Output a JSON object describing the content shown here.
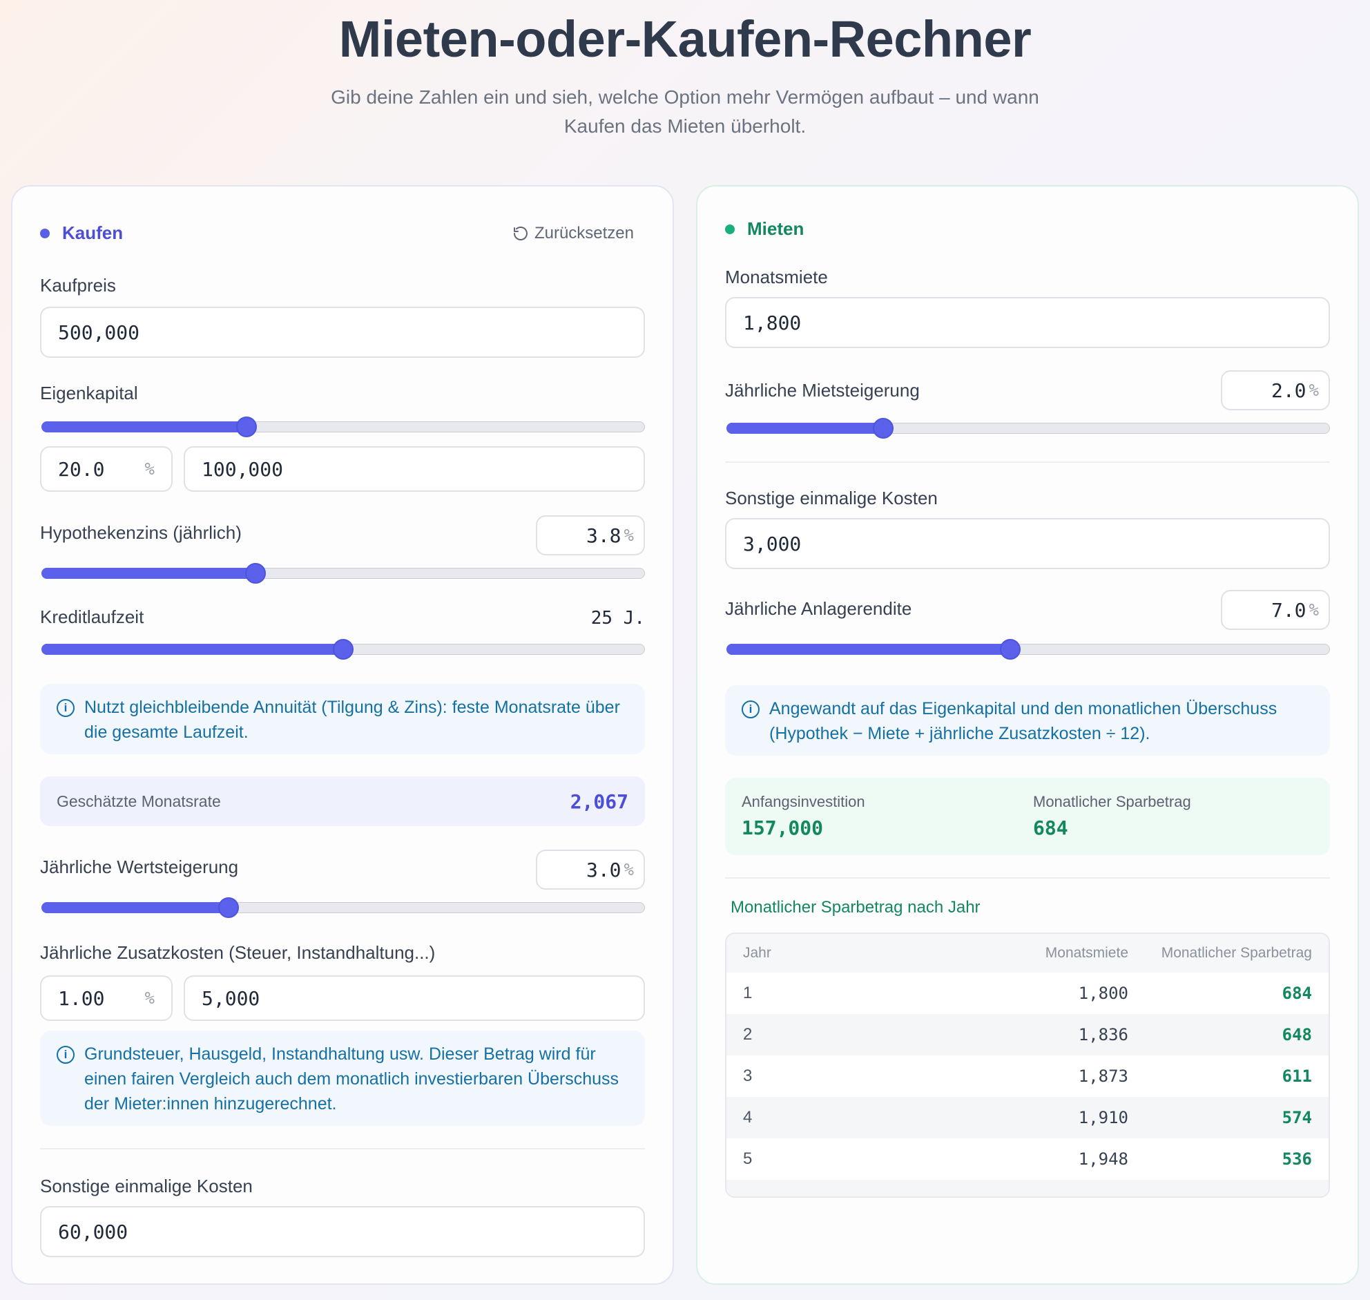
{
  "header": {
    "title": "Mieten-oder-Kaufen-Rechner",
    "subtitle": "Gib deine Zahlen ein und sieh, welche Option mehr Vermögen aufbaut – und wann Kaufen das Mieten überholt."
  },
  "colors": {
    "accent_buy": "#5b61ea",
    "accent_rent": "#19b07a",
    "info_text": "#1670a3"
  },
  "buy": {
    "section_title": "Kaufen",
    "reset_label": "Zurücksetzen",
    "purchase_price": {
      "label": "Kaufpreis",
      "value": "500,000"
    },
    "down_payment": {
      "label": "Eigenkapital",
      "percent": "20.0",
      "percent_symbol": "%",
      "amount": "100,000",
      "slider_level": 0.34
    },
    "interest": {
      "label": "Hypothekenzins (jährlich)",
      "value": "3.8",
      "percent_symbol": "%",
      "slider_level": 0.355
    },
    "term": {
      "label": "Kreditlaufzeit",
      "value": "25 J.",
      "slider_level": 0.5
    },
    "annuity_info": "Nutzt gleichbleibende Annuität (Tilgung & Zins): feste Monatsrate über die gesamte Laufzeit.",
    "monthly_payment": {
      "label": "Geschätzte Monatsrate",
      "value": "2,067"
    },
    "appreciation": {
      "label": "Jährliche Wertsteigerung",
      "value": "3.0",
      "percent_symbol": "%",
      "slider_level": 0.31
    },
    "extra_costs": {
      "label": "Jährliche Zusatzkosten (Steuer, Instandhaltung...)",
      "percent": "1.00",
      "percent_symbol": "%",
      "amount": "5,000"
    },
    "extra_costs_info": "Grundsteuer, Hausgeld, Instandhaltung usw. Dieser Betrag wird für einen fairen Vergleich auch dem monatlich investierbaren Überschuss der Mieter:innen hinzugerechnet.",
    "one_time_costs": {
      "label": "Sonstige einmalige Kosten",
      "value": "60,000"
    }
  },
  "rent": {
    "section_title": "Mieten",
    "monthly_rent": {
      "label": "Monatsmiete",
      "value": "1,800"
    },
    "rent_increase": {
      "label": "Jährliche Mietsteigerung",
      "value": "2.0",
      "percent_symbol": "%",
      "slider_level": 0.26
    },
    "one_time_costs": {
      "label": "Sonstige einmalige Kosten",
      "value": "3,000"
    },
    "investment_return": {
      "label": "Jährliche Anlagerendite",
      "value": "7.0",
      "percent_symbol": "%",
      "slider_level": 0.47
    },
    "return_info": "Angewandt auf das Eigenkapital und den monatlichen Überschuss (Hypothek − Miete + jährliche Zusatzkosten ÷ 12).",
    "initial_investment": {
      "label": "Anfangsinvestition",
      "value": "157,000"
    },
    "monthly_savings": {
      "label": "Monatlicher Sparbetrag",
      "value": "684"
    },
    "table": {
      "title": "Monatlicher Sparbetrag nach Jahr",
      "headers": [
        "Jahr",
        "Monatsmiete",
        "Monatlicher Sparbetrag"
      ],
      "rows": [
        {
          "year": "1",
          "rent": "1,800",
          "savings": "684"
        },
        {
          "year": "2",
          "rent": "1,836",
          "savings": "648"
        },
        {
          "year": "3",
          "rent": "1,873",
          "savings": "611"
        },
        {
          "year": "4",
          "rent": "1,910",
          "savings": "574"
        },
        {
          "year": "5",
          "rent": "1,948",
          "savings": "536"
        }
      ]
    }
  }
}
